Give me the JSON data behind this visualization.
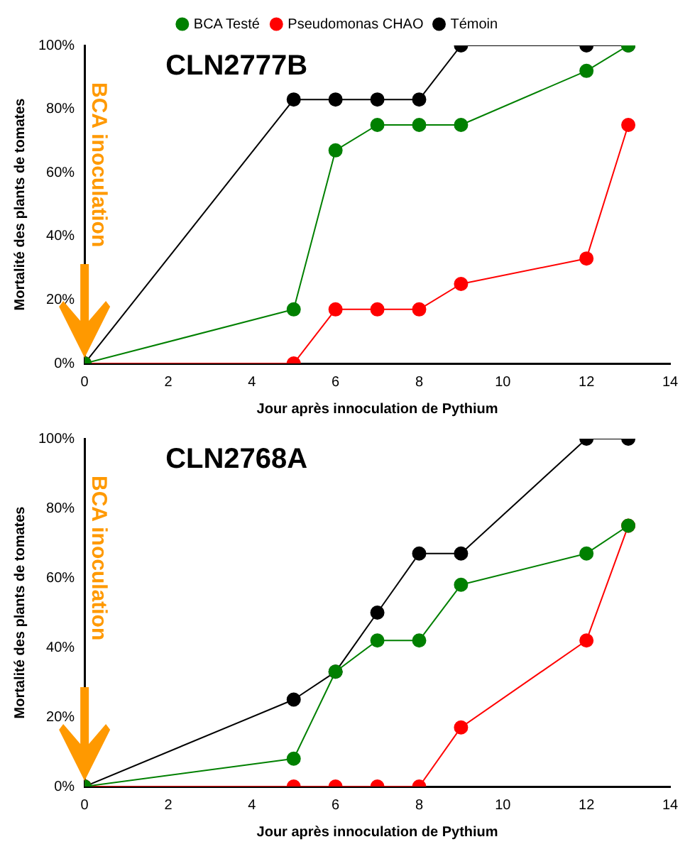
{
  "chart_data": [
    {
      "type": "line",
      "title": "CLN2777B",
      "xlabel": "Jour après innoculation de Pythium",
      "ylabel": "Mortalité des plants de tomates",
      "x": [
        0,
        5,
        6,
        7,
        8,
        9,
        12,
        13
      ],
      "series": [
        {
          "name": "BCA Testé",
          "color": "#008000",
          "values": [
            0,
            17,
            67,
            75,
            75,
            75,
            92,
            100
          ]
        },
        {
          "name": "Pseudomonas CHAO",
          "color": "#ff0000",
          "values": [
            0,
            0,
            17,
            17,
            17,
            25,
            33,
            75
          ]
        },
        {
          "name": "Témoin",
          "color": "#000000",
          "values": [
            0,
            83,
            83,
            83,
            83,
            100,
            100,
            100
          ]
        }
      ],
      "xlim": [
        0,
        14
      ],
      "xticks": [
        0,
        2,
        4,
        6,
        8,
        10,
        12,
        14
      ],
      "ylim": [
        0,
        100
      ],
      "yticks": [
        {
          "value": 0,
          "label": "0%"
        },
        {
          "value": 20,
          "label": "20%"
        },
        {
          "value": 40,
          "label": "40%"
        },
        {
          "value": 60,
          "label": "60%"
        },
        {
          "value": 80,
          "label": "80%"
        },
        {
          "value": 100,
          "label": "100%"
        }
      ],
      "annotations": [
        "BCA inoculation"
      ],
      "legend": "top",
      "grid": false,
      "marker": "circle",
      "line_style": "solid"
    },
    {
      "type": "line",
      "title": "CLN2768A",
      "xlabel": "Jour après innoculation de Pythium",
      "ylabel": "Mortalité des plants de tomates",
      "x": [
        0,
        5,
        6,
        7,
        8,
        9,
        12,
        13
      ],
      "series": [
        {
          "color": "#008000",
          "values": [
            0,
            8,
            33,
            42,
            42,
            58,
            67,
            75
          ]
        },
        {
          "color": "#ff0000",
          "values": [
            0,
            0,
            0,
            0,
            0,
            17,
            42,
            75
          ]
        },
        {
          "color": "#000000",
          "values": [
            0,
            25,
            33,
            50,
            67,
            67,
            100,
            100
          ]
        }
      ],
      "xlim": [
        0,
        14
      ],
      "xticks": [
        0,
        2,
        4,
        6,
        8,
        10,
        12,
        14
      ],
      "ylim": [
        0,
        100
      ],
      "yticks": [
        {
          "value": 0,
          "label": "0%"
        },
        {
          "value": 20,
          "label": "20%"
        },
        {
          "value": 40,
          "label": "40%"
        },
        {
          "value": 60,
          "label": "60%"
        },
        {
          "value": 80,
          "label": "80%"
        },
        {
          "value": 100,
          "label": "100%"
        }
      ],
      "annotations": [
        "BCA inoculation"
      ],
      "legend": false,
      "grid": false,
      "marker": "circle",
      "line_style": "solid"
    }
  ]
}
